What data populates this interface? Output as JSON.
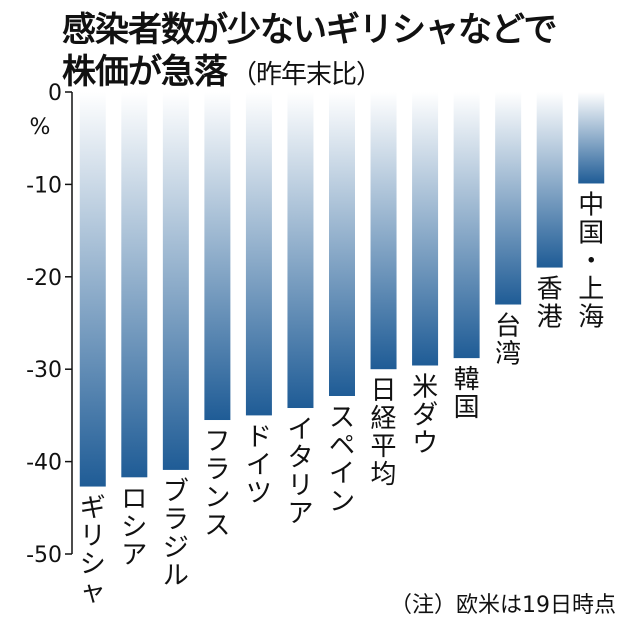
{
  "title_line1": "感染者数が少ないギリシャなどで",
  "title_line2": "株価が急落",
  "subtitle": "（昨年末比）",
  "unit_label": "%",
  "footnote": "（注）欧米は19日時点",
  "chart_data": {
    "type": "bar",
    "orientation": "vertical",
    "categories": [
      "ギリシャ",
      "ロシア",
      "ブラジル",
      "フランス",
      "ドイツ",
      "イタリア",
      "スペイン",
      "日経平均",
      "米ダウ",
      "韓国",
      "台湾",
      "香港",
      "中国・上海"
    ],
    "values": [
      -42.7,
      -41.7,
      -40.9,
      -35.5,
      -35.0,
      -34.2,
      -32.9,
      -30.0,
      -29.6,
      -28.8,
      -23.0,
      -19.0,
      -9.9
    ],
    "ylim": [
      -50,
      0
    ],
    "yticks": [
      0,
      -10,
      -20,
      -30,
      -40,
      -50
    ],
    "ytick_labels": [
      "0",
      "-10",
      "-20",
      "-30",
      "-40",
      "-50"
    ],
    "grid": false,
    "legend": "none",
    "bar_gradient": {
      "top": "#ffffff",
      "bottom": "#1f5c96"
    }
  }
}
